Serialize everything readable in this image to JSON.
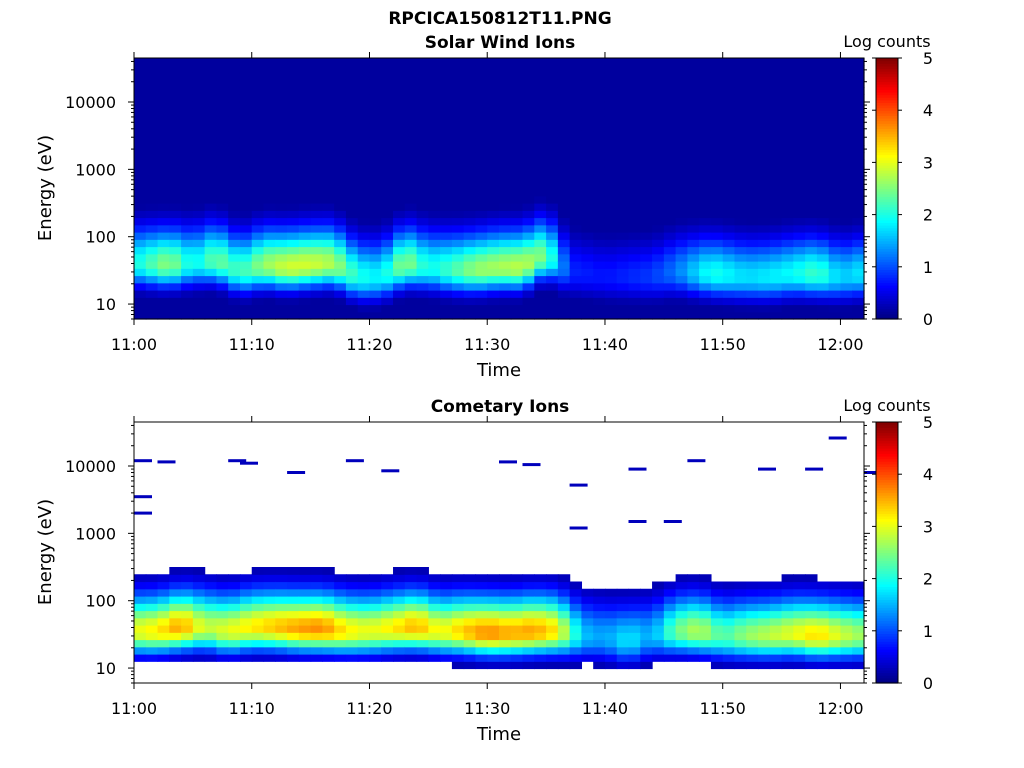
{
  "figure_title": "RPCICA150812T11.PNG",
  "colormap": [
    "#00007f",
    "#0000ff",
    "#007fff",
    "#00ffff",
    "#7fff7f",
    "#ffff00",
    "#ff7f00",
    "#ff0000",
    "#7f0000"
  ],
  "chart_data": [
    {
      "type": "heatmap",
      "title": "Solar Wind Ions",
      "xlabel": "Time",
      "ylabel": "Energy (eV)",
      "x_range": [
        "11:00",
        "12:02"
      ],
      "x_ticks": [
        "11:00",
        "11:10",
        "11:20",
        "11:30",
        "11:40",
        "11:50",
        "12:00"
      ],
      "y_scale": "log",
      "y_range": [
        6,
        45000
      ],
      "y_ticks": [
        10,
        100,
        1000,
        10000
      ],
      "y_tick_labels": [
        "10",
        "100",
        "1000",
        "10000"
      ],
      "colorbar": {
        "label": "Log counts",
        "range": [
          0,
          5
        ],
        "ticks": [
          "0",
          "1",
          "2",
          "3",
          "4",
          "5"
        ]
      },
      "background_level": 0.15,
      "peak_profile": [
        {
          "time": "11:00",
          "energy_eV": 40,
          "log_counts": 1.9
        },
        {
          "time": "11:03",
          "energy_eV": 38,
          "log_counts": 2.6
        },
        {
          "time": "11:05",
          "energy_eV": 40,
          "log_counts": 1.8
        },
        {
          "time": "11:07",
          "energy_eV": 45,
          "log_counts": 2.4
        },
        {
          "time": "11:09",
          "energy_eV": 30,
          "log_counts": 2.1
        },
        {
          "time": "11:11",
          "energy_eV": 38,
          "log_counts": 2.6
        },
        {
          "time": "11:13",
          "energy_eV": 35,
          "log_counts": 2.9
        },
        {
          "time": "11:15",
          "energy_eV": 38,
          "log_counts": 2.9
        },
        {
          "time": "11:17",
          "energy_eV": 40,
          "log_counts": 2.7
        },
        {
          "time": "11:19",
          "energy_eV": 25,
          "log_counts": 2.0
        },
        {
          "time": "11:21",
          "energy_eV": 25,
          "log_counts": 1.8
        },
        {
          "time": "11:23",
          "energy_eV": 40,
          "log_counts": 2.6
        },
        {
          "time": "11:25",
          "energy_eV": 35,
          "log_counts": 1.9
        },
        {
          "time": "11:27",
          "energy_eV": 32,
          "log_counts": 2.2
        },
        {
          "time": "11:29",
          "energy_eV": 32,
          "log_counts": 2.6
        },
        {
          "time": "11:31",
          "energy_eV": 35,
          "log_counts": 2.7
        },
        {
          "time": "11:33",
          "energy_eV": 35,
          "log_counts": 2.8
        },
        {
          "time": "11:35",
          "energy_eV": 55,
          "log_counts": 2.4
        },
        {
          "time": "11:37",
          "energy_eV": 30,
          "log_counts": 0.8
        },
        {
          "time": "11:40",
          "energy_eV": 25,
          "log_counts": 0.7
        },
        {
          "time": "11:44",
          "energy_eV": 25,
          "log_counts": 0.9
        },
        {
          "time": "11:46",
          "energy_eV": 30,
          "log_counts": 1.2
        },
        {
          "time": "11:49",
          "energy_eV": 28,
          "log_counts": 2.0
        },
        {
          "time": "11:52",
          "energy_eV": 25,
          "log_counts": 1.7
        },
        {
          "time": "11:54",
          "energy_eV": 25,
          "log_counts": 1.8
        },
        {
          "time": "11:56",
          "energy_eV": 28,
          "log_counts": 1.9
        },
        {
          "time": "11:58",
          "energy_eV": 28,
          "log_counts": 2.2
        },
        {
          "time": "12:00",
          "energy_eV": 25,
          "log_counts": 1.6
        },
        {
          "time": "12:02",
          "energy_eV": 28,
          "log_counts": 1.8
        }
      ]
    },
    {
      "type": "heatmap",
      "title": "Cometary Ions",
      "xlabel": "Time",
      "ylabel": "Energy (eV)",
      "x_range": [
        "11:00",
        "12:02"
      ],
      "x_ticks": [
        "11:00",
        "11:10",
        "11:20",
        "11:30",
        "11:40",
        "11:50",
        "12:00"
      ],
      "y_scale": "log",
      "y_range": [
        6,
        45000
      ],
      "y_ticks": [
        10,
        100,
        1000,
        10000
      ],
      "y_tick_labels": [
        "10",
        "100",
        "1000",
        "10000"
      ],
      "colorbar": {
        "label": "Log counts",
        "range": [
          0,
          5
        ],
        "ticks": [
          "0",
          "1",
          "2",
          "3",
          "4",
          "5"
        ]
      },
      "background_level": null,
      "peak_profile": [
        {
          "time": "11:00",
          "energy_eV": 35,
          "log_counts": 3.0
        },
        {
          "time": "11:02",
          "energy_eV": 35,
          "log_counts": 3.2
        },
        {
          "time": "11:04",
          "energy_eV": 40,
          "log_counts": 3.6
        },
        {
          "time": "11:06",
          "energy_eV": 40,
          "log_counts": 2.8
        },
        {
          "time": "11:08",
          "energy_eV": 35,
          "log_counts": 3.0
        },
        {
          "time": "11:10",
          "energy_eV": 40,
          "log_counts": 3.2
        },
        {
          "time": "11:12",
          "energy_eV": 40,
          "log_counts": 3.4
        },
        {
          "time": "11:14",
          "energy_eV": 38,
          "log_counts": 3.6
        },
        {
          "time": "11:16",
          "energy_eV": 38,
          "log_counts": 3.7
        },
        {
          "time": "11:18",
          "energy_eV": 35,
          "log_counts": 3.2
        },
        {
          "time": "11:20",
          "energy_eV": 35,
          "log_counts": 3.0
        },
        {
          "time": "11:22",
          "energy_eV": 38,
          "log_counts": 3.2
        },
        {
          "time": "11:24",
          "energy_eV": 40,
          "log_counts": 3.5
        },
        {
          "time": "11:26",
          "energy_eV": 35,
          "log_counts": 3.0
        },
        {
          "time": "11:28",
          "energy_eV": 35,
          "log_counts": 3.4
        },
        {
          "time": "11:30",
          "energy_eV": 33,
          "log_counts": 3.7
        },
        {
          "time": "11:32",
          "energy_eV": 33,
          "log_counts": 3.5
        },
        {
          "time": "11:34",
          "energy_eV": 35,
          "log_counts": 3.6
        },
        {
          "time": "11:36",
          "energy_eV": 35,
          "log_counts": 3.2
        },
        {
          "time": "11:38",
          "energy_eV": 30,
          "log_counts": 1.6
        },
        {
          "time": "11:40",
          "energy_eV": 28,
          "log_counts": 1.4
        },
        {
          "time": "11:42",
          "energy_eV": 25,
          "log_counts": 1.8
        },
        {
          "time": "11:44",
          "energy_eV": 30,
          "log_counts": 1.4
        },
        {
          "time": "11:46",
          "energy_eV": 35,
          "log_counts": 2.4
        },
        {
          "time": "11:48",
          "energy_eV": 35,
          "log_counts": 2.8
        },
        {
          "time": "11:50",
          "energy_eV": 30,
          "log_counts": 2.2
        },
        {
          "time": "11:52",
          "energy_eV": 30,
          "log_counts": 2.6
        },
        {
          "time": "11:54",
          "energy_eV": 30,
          "log_counts": 2.8
        },
        {
          "time": "11:56",
          "energy_eV": 32,
          "log_counts": 3.0
        },
        {
          "time": "11:58",
          "energy_eV": 30,
          "log_counts": 3.3
        },
        {
          "time": "12:00",
          "energy_eV": 30,
          "log_counts": 2.9
        },
        {
          "time": "12:02",
          "energy_eV": 30,
          "log_counts": 2.6
        }
      ],
      "sparse_high_energy_events": [
        {
          "time": "11:00",
          "energy_eV": 12000
        },
        {
          "time": "11:00",
          "energy_eV": 3500
        },
        {
          "time": "11:00",
          "energy_eV": 2000
        },
        {
          "time": "11:02",
          "energy_eV": 11500
        },
        {
          "time": "11:08",
          "energy_eV": 12000
        },
        {
          "time": "11:09",
          "energy_eV": 11000
        },
        {
          "time": "11:13",
          "energy_eV": 8000
        },
        {
          "time": "11:18",
          "energy_eV": 12000
        },
        {
          "time": "11:21",
          "energy_eV": 8500
        },
        {
          "time": "11:31",
          "energy_eV": 11500
        },
        {
          "time": "11:33",
          "energy_eV": 10500
        },
        {
          "time": "11:37",
          "energy_eV": 5200
        },
        {
          "time": "11:37",
          "energy_eV": 1200
        },
        {
          "time": "11:42",
          "energy_eV": 9000
        },
        {
          "time": "11:42",
          "energy_eV": 1500
        },
        {
          "time": "11:45",
          "energy_eV": 1500
        },
        {
          "time": "11:47",
          "energy_eV": 12000
        },
        {
          "time": "11:53",
          "energy_eV": 9000
        },
        {
          "time": "11:57",
          "energy_eV": 9000
        },
        {
          "time": "11:59",
          "energy_eV": 26000
        },
        {
          "time": "12:02",
          "energy_eV": 8000
        }
      ]
    }
  ]
}
